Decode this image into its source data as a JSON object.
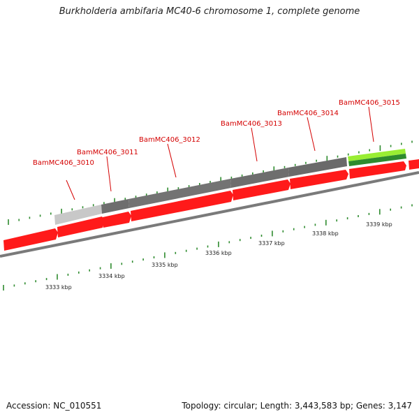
{
  "title": "Burkholderia ambifaria MC40-6 chromosome 1, complete genome",
  "accession": "Accession: NC_010551",
  "topology": "Topology: circular; Length: 3,443,583 bp; Genes: 3,147",
  "colors": {
    "cds": "#ff1a1a",
    "gene_light": "#c8c8c8",
    "gene_dark": "#6e6e6e",
    "gene_highlight": "#99ee33",
    "gene_highlight_dark": "#2e8b2e",
    "tick": "#2e8b2e",
    "backbone": "#7a7a7a",
    "label": "#d40000"
  },
  "genes": [
    {
      "name": "BamMC406_3010"
    },
    {
      "name": "BamMC406_3011"
    },
    {
      "name": "BamMC406_3012"
    },
    {
      "name": "BamMC406_3013"
    },
    {
      "name": "BamMC406_3014"
    },
    {
      "name": "BamMC406_3015"
    }
  ],
  "kbp_labels": [
    "3333 kbp",
    "3334 kbp",
    "3335 kbp",
    "3336 kbp",
    "3337 kbp",
    "3338 kbp",
    "3339 kbp"
  ]
}
